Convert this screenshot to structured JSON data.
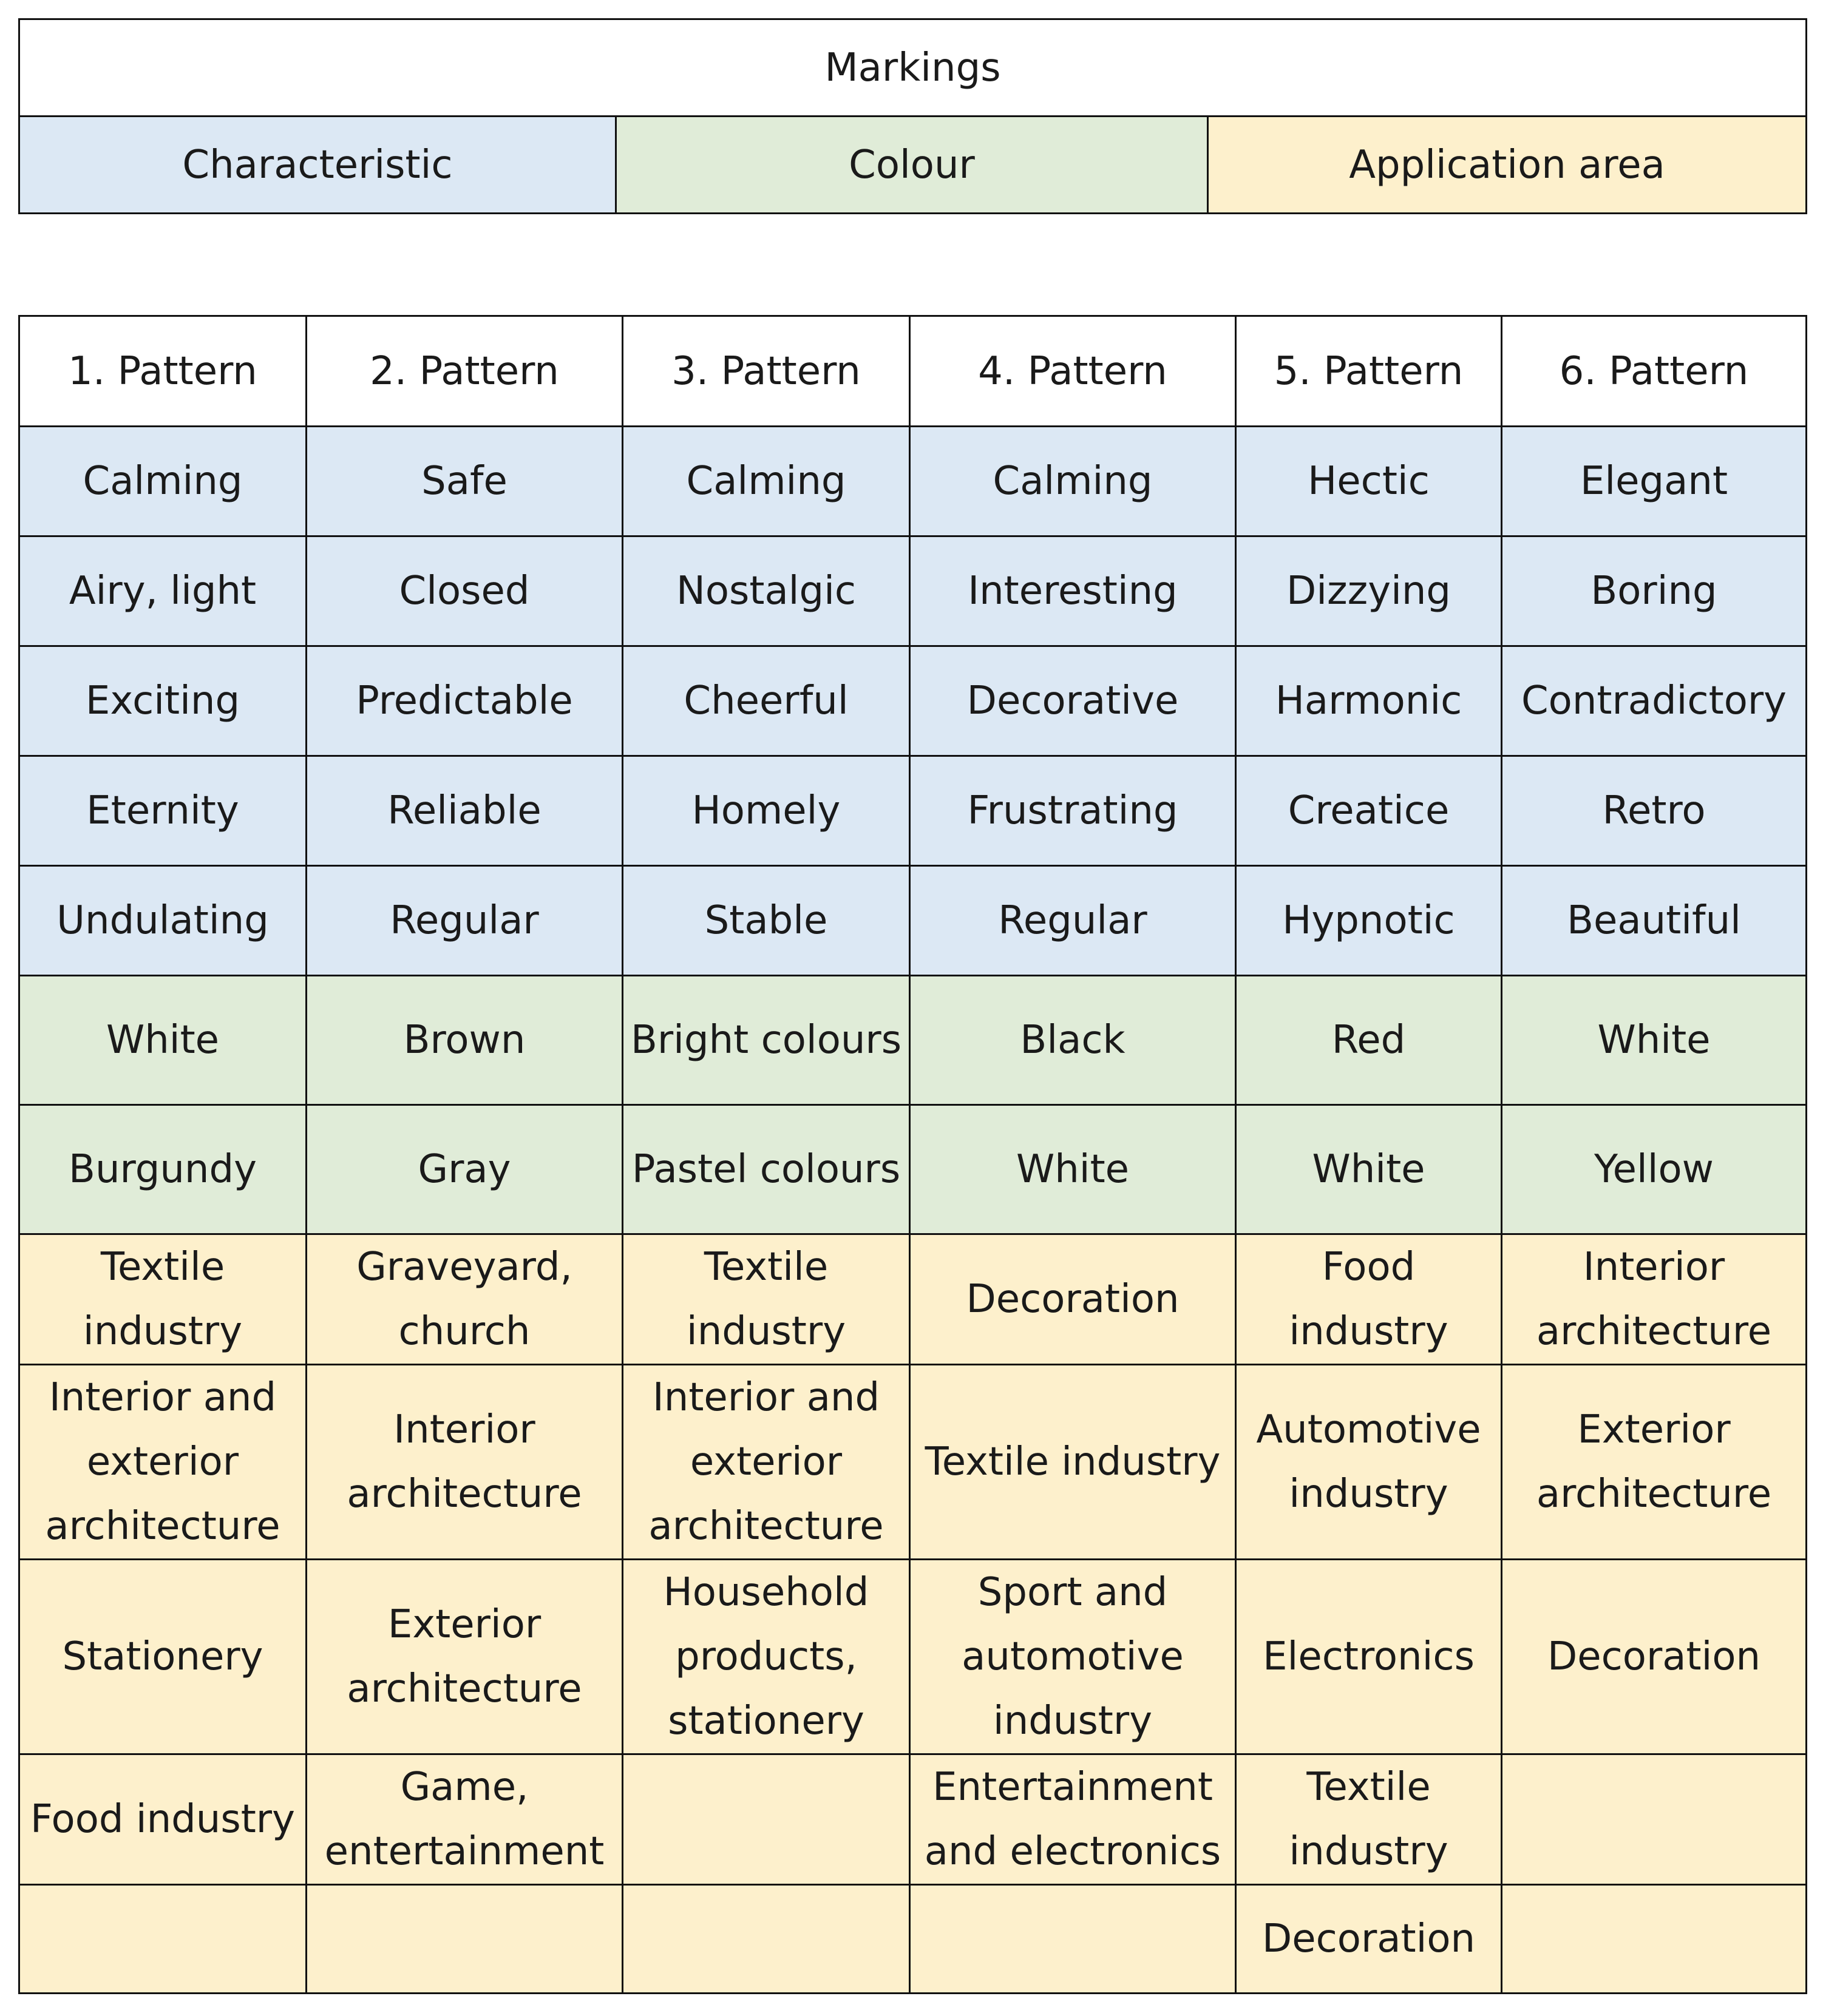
{
  "colors": {
    "characteristic": "#dce8f4",
    "colour": "#e0ecd8",
    "application": "#fdf0cc"
  },
  "legend": {
    "title": "Markings",
    "keys": [
      {
        "label": "Characteristic",
        "color": "#dce8f4"
      },
      {
        "label": "Colour",
        "color": "#e0ecd8"
      },
      {
        "label": "Application area",
        "color": "#fdf0cc"
      }
    ]
  },
  "table": {
    "headers": [
      "1. Pattern",
      "2. Pattern",
      "3. Pattern",
      "4. Pattern",
      "5. Pattern",
      "6. Pattern"
    ],
    "rows": [
      {
        "category": "characteristic",
        "cells": [
          "Calming",
          "Safe",
          "Calming",
          "Calming",
          "Hectic",
          "Elegant"
        ]
      },
      {
        "category": "characteristic",
        "cells": [
          "Airy, light",
          "Closed",
          "Nostalgic",
          "Interesting",
          "Dizzying",
          "Boring"
        ]
      },
      {
        "category": "characteristic",
        "cells": [
          "Exciting",
          "Predictable",
          "Cheerful",
          "Decorative",
          "Harmonic",
          "Contradictory"
        ]
      },
      {
        "category": "characteristic",
        "cells": [
          "Eternity",
          "Reliable",
          "Homely",
          "Frustrating",
          "Creatice",
          "Retro"
        ]
      },
      {
        "category": "characteristic",
        "cells": [
          "Undulating",
          "Regular",
          "Stable",
          "Regular",
          "Hypnotic",
          "Beautiful"
        ]
      },
      {
        "category": "colour",
        "cells": [
          "White",
          "Brown",
          "Bright colours",
          "Black",
          "Red",
          "White"
        ]
      },
      {
        "category": "colour",
        "cells": [
          "Burgundy",
          "Gray",
          "Pastel colours",
          "White",
          "White",
          "Yellow"
        ]
      },
      {
        "category": "application",
        "cells": [
          "Textile industry",
          "Graveyard, church",
          "Textile industry",
          "Decoration",
          "Food industry",
          "Interior architecture"
        ]
      },
      {
        "category": "application",
        "cells": [
          "Interior and exterior architecture",
          "Interior architecture",
          "Interior and exterior architecture",
          "Textile industry",
          "Automotive industry",
          "Exterior architecture"
        ]
      },
      {
        "category": "application",
        "cells": [
          "Stationery",
          "Exterior architecture",
          "Household products, stationery",
          "Sport and automotive industry",
          "Electronics",
          "Decoration"
        ]
      },
      {
        "category": "application",
        "cells": [
          "Food industry",
          "Game, entertainment",
          "",
          "Entertainment and electronics",
          "Textile industry",
          ""
        ]
      },
      {
        "category": "application",
        "cells": [
          "",
          "",
          "",
          "",
          "Decoration",
          ""
        ]
      }
    ]
  }
}
